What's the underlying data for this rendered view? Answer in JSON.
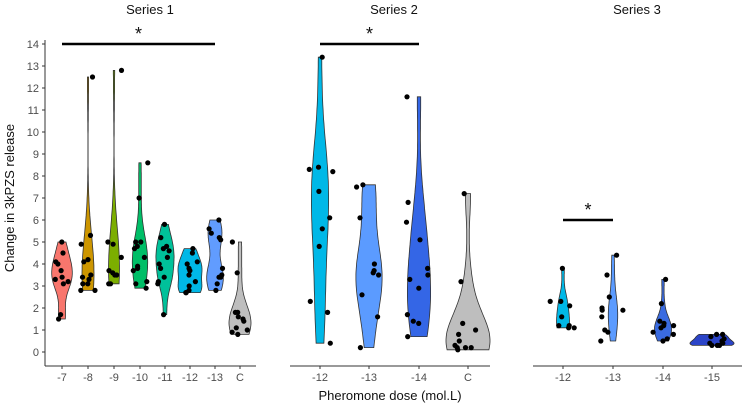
{
  "chart_data": {
    "type": "violin",
    "ylabel": "Change in 3kPZS release",
    "xlabel": "Pheromone dose (mol.L)",
    "ylim": [
      0,
      14
    ],
    "yticks": [
      0,
      1,
      2,
      3,
      4,
      5,
      6,
      7,
      8,
      9,
      10,
      11,
      12,
      13,
      14
    ],
    "grid": false,
    "panels": [
      {
        "title": "Series 1",
        "groups": [
          {
            "label": "-7",
            "color": "#F8766D",
            "points": [
              5.0,
              4.5,
              4.1,
              4.0,
              3.7,
              3.4,
              3.3,
              3.2,
              3.1,
              1.7,
              1.5
            ]
          },
          {
            "label": "-8",
            "color": "#CD9600",
            "points": [
              12.5,
              5.3,
              4.9,
              4.2,
              4.1,
              3.5,
              3.4,
              3.3,
              3.1,
              3.1,
              2.8,
              2.8
            ]
          },
          {
            "label": "-9",
            "color": "#7CAE00",
            "points": [
              12.8,
              5.0,
              4.9,
              4.3,
              3.7,
              3.6,
              3.5,
              3.5,
              3.1,
              3.1
            ]
          },
          {
            "label": "-10",
            "color": "#00BE67",
            "points": [
              8.6,
              7.0,
              5.0,
              5.0,
              4.8,
              4.7,
              4.3,
              3.9,
              3.8,
              3.7,
              3.2,
              3.1,
              2.9
            ]
          },
          {
            "label": "-11",
            "color": "#00C19A",
            "points": [
              5.8,
              5.2,
              4.8,
              4.7,
              4.6,
              4.3,
              4.0,
              3.8,
              3.4,
              3.2,
              3.1,
              1.7
            ]
          },
          {
            "label": "-12",
            "color": "#00B8E7",
            "points": [
              4.7,
              4.5,
              4.1,
              4.0,
              3.8,
              3.7,
              3.5,
              3.2,
              3.0,
              2.8,
              2.7,
              2.7
            ]
          },
          {
            "label": "-13",
            "color": "#619CFF",
            "points": [
              6.0,
              5.6,
              5.4,
              5.2,
              5.1,
              3.8,
              3.5,
              3.4,
              3.4,
              3.1,
              2.8
            ]
          },
          {
            "label": "C",
            "color": "#BEBEBE",
            "points": [
              5.0,
              3.6,
              1.8,
              1.8,
              1.6,
              1.5,
              1.4,
              1.1,
              1.0,
              0.9,
              0.8
            ]
          }
        ],
        "significance": {
          "from": "-7",
          "to": "-13",
          "y": 14,
          "label": "*"
        }
      },
      {
        "title": "Series 2",
        "groups": [
          {
            "label": "-12",
            "color": "#00B8E7",
            "points": [
              13.4,
              8.4,
              8.3,
              8.2,
              7.3,
              6.1,
              5.6,
              4.8,
              2.3,
              1.8,
              0.4
            ]
          },
          {
            "label": "-13",
            "color": "#5B9BFF",
            "points": [
              7.6,
              7.5,
              6.1,
              4.0,
              3.7,
              3.6,
              3.5,
              2.6,
              1.6,
              0.2
            ]
          },
          {
            "label": "-14",
            "color": "#3466E6",
            "points": [
              11.6,
              6.8,
              5.9,
              5.1,
              3.8,
              3.5,
              3.3,
              2.9,
              1.7,
              1.4,
              1.3,
              0.7
            ]
          },
          {
            "label": "C",
            "color": "#BEBEBE",
            "points": [
              7.2,
              3.2,
              1.3,
              1.0,
              0.8,
              0.5,
              0.3,
              0.2,
              0.2,
              0.2,
              0.1
            ]
          }
        ],
        "significance": {
          "from": "-12",
          "to": "-14",
          "y": 14,
          "label": "*"
        }
      },
      {
        "title": "Series 3",
        "groups": [
          {
            "label": "-12",
            "color": "#00B8E7",
            "points": [
              3.8,
              2.3,
              2.3,
              2.1,
              1.6,
              1.2,
              1.2,
              1.1,
              1.1
            ]
          },
          {
            "label": "-13",
            "color": "#5B9BFF",
            "points": [
              4.4,
              3.5,
              2.5,
              2.0,
              1.9,
              1.9,
              1.6,
              1.0,
              0.9,
              0.5
            ]
          },
          {
            "label": "-14",
            "color": "#3A6BE0",
            "points": [
              3.3,
              2.2,
              1.4,
              1.3,
              1.2,
              1.2,
              1.1,
              0.9,
              0.8,
              0.6,
              0.5
            ]
          },
          {
            "label": "-15",
            "color": "#2B44C8",
            "points": [
              0.8,
              0.8,
              0.7,
              0.6,
              0.5,
              0.4,
              0.3,
              0.3,
              0.3,
              0.4
            ]
          }
        ],
        "significance": {
          "from": "-12",
          "to": "-13",
          "y": 6,
          "label": "*"
        }
      }
    ]
  }
}
